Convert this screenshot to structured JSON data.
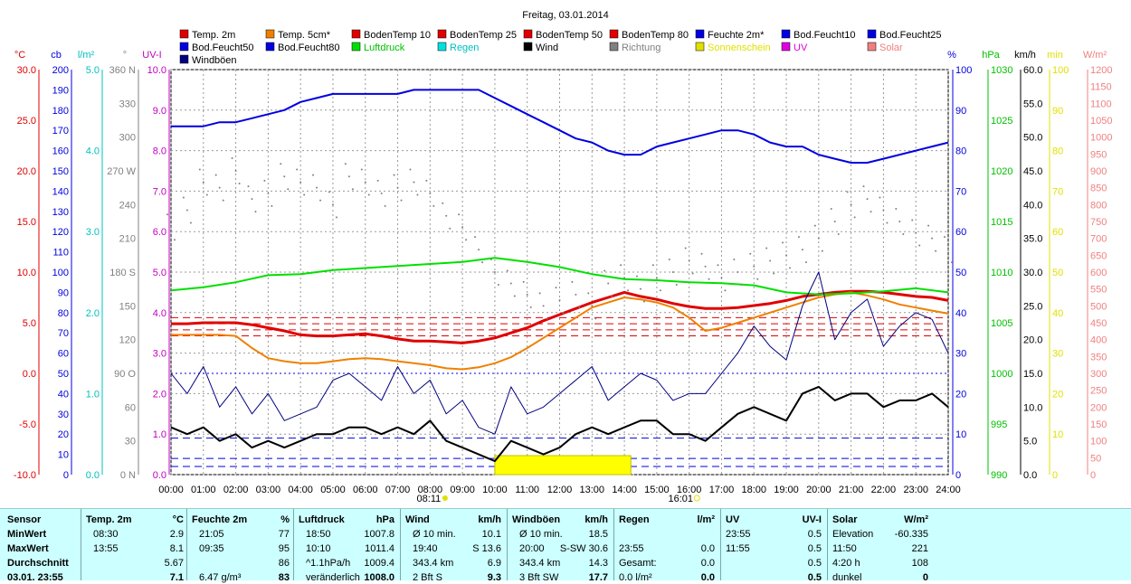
{
  "chart_data": {
    "type": "line",
    "title": "Freitag, 03.01.2014",
    "legend": [
      {
        "name": "Temp. 2m",
        "color": "#e00000"
      },
      {
        "name": "Temp. 5cm*",
        "color": "#f08000"
      },
      {
        "name": "BodenTemp 10",
        "color": "#e00000"
      },
      {
        "name": "BodenTemp 25",
        "color": "#e00000"
      },
      {
        "name": "BodenTemp 50",
        "color": "#e00000"
      },
      {
        "name": "BodenTemp 80",
        "color": "#e00000"
      },
      {
        "name": "Feuchte 2m*",
        "color": "#0000e0"
      },
      {
        "name": "Bod.Feucht10",
        "color": "#0000e0"
      },
      {
        "name": "Bod.Feucht25",
        "color": "#0000e0"
      },
      {
        "name": "Bod.Feucht50",
        "color": "#0000e0"
      },
      {
        "name": "Bod.Feucht80",
        "color": "#0000e0"
      },
      {
        "name": "Luftdruck",
        "color": "#00e000"
      },
      {
        "name": "Regen",
        "color": "#00e0e0"
      },
      {
        "name": "Wind",
        "color": "#000000"
      },
      {
        "name": "Richtung",
        "color": "#808080"
      },
      {
        "name": "Sonnenschein",
        "color": "#e0e000"
      },
      {
        "name": "UV",
        "color": "#e000e0"
      },
      {
        "name": "Solar",
        "color": "#f08080"
      },
      {
        "name": "Windböen",
        "color": "#000080"
      }
    ],
    "x_ticks": [
      "00:00",
      "01:00",
      "02:00",
      "03:00",
      "04:00",
      "05:00",
      "06:00",
      "07:00",
      "08:00",
      "09:00",
      "10:00",
      "11:00",
      "12:00",
      "13:00",
      "14:00",
      "15:00",
      "16:00",
      "17:00",
      "18:00",
      "19:00",
      "20:00",
      "21:00",
      "22:00",
      "23:00",
      "24:00"
    ],
    "sunrise": "08:11",
    "sunset": "16:01",
    "left_axes": [
      {
        "unit": "°C",
        "color": "#e00000",
        "ticks": [
          "30.0",
          "25.0",
          "20.0",
          "15.0",
          "10.0",
          "5.0",
          "0.0",
          "-5.0",
          "-10.0"
        ]
      },
      {
        "unit": "cb",
        "color": "#0000e0",
        "ticks": [
          "200",
          "190",
          "180",
          "170",
          "160",
          "150",
          "140",
          "130",
          "120",
          "110",
          "100",
          "90",
          "80",
          "70",
          "60",
          "50",
          "40",
          "30",
          "20",
          "10",
          "0"
        ]
      },
      {
        "unit": "l/m²",
        "color": "#00c0c0",
        "ticks": [
          "5.0",
          "4.0",
          "3.0",
          "2.0",
          "1.0",
          "0.0"
        ]
      },
      {
        "unit": "°",
        "color": "#808080",
        "ticks": [
          "360 N",
          "330",
          "300",
          "270 W",
          "240",
          "210",
          "180 S",
          "150",
          "120",
          "90 O",
          "60",
          "30",
          "0 N"
        ]
      },
      {
        "unit": "UV-I",
        "color": "#c000c0",
        "ticks": [
          "10.0",
          "9.0",
          "8.0",
          "7.0",
          "6.0",
          "5.0",
          "4.0",
          "3.0",
          "2.0",
          "1.0",
          "0.0"
        ]
      }
    ],
    "right_axes": [
      {
        "unit": "%",
        "color": "#0000e0",
        "ticks": [
          "100",
          "90",
          "80",
          "70",
          "60",
          "50",
          "40",
          "30",
          "20",
          "10",
          "0"
        ]
      },
      {
        "unit": "hPa",
        "color": "#00c000",
        "ticks": [
          "1030",
          "1025",
          "1020",
          "1015",
          "1010",
          "1005",
          "1000",
          "995",
          "990"
        ]
      },
      {
        "unit": "km/h",
        "color": "#000000",
        "ticks": [
          "60.0",
          "55.0",
          "50.0",
          "45.0",
          "40.0",
          "35.0",
          "30.0",
          "25.0",
          "20.0",
          "15.0",
          "10.0",
          "5.0",
          "0.0"
        ]
      },
      {
        "unit": "min",
        "color": "#e0e000",
        "ticks": [
          "100",
          "90",
          "80",
          "70",
          "60",
          "50",
          "40",
          "30",
          "20",
          "10",
          "0"
        ]
      },
      {
        "unit": "W/m²",
        "color": "#f08080",
        "ticks": [
          "1200",
          "1150",
          "1100",
          "1050",
          "1000",
          "950",
          "900",
          "850",
          "800",
          "750",
          "700",
          "650",
          "600",
          "550",
          "500",
          "450",
          "400",
          "350",
          "300",
          "250",
          "200",
          "150",
          "100",
          "50",
          "0"
        ]
      }
    ],
    "series": [
      {
        "name": "Feuchte 2m*",
        "axis": "%",
        "color": "#0000e0",
        "width": 2,
        "x": [
          0,
          0.5,
          1,
          1.5,
          2,
          2.5,
          3,
          3.5,
          4,
          4.5,
          5,
          5.5,
          6,
          6.5,
          7,
          7.5,
          8,
          8.5,
          9,
          9.5,
          10,
          10.5,
          11,
          11.5,
          12,
          12.5,
          13,
          13.5,
          14,
          14.5,
          15,
          15.5,
          16,
          16.5,
          17,
          17.5,
          18,
          18.5,
          19,
          19.5,
          20,
          20.5,
          21,
          21.5,
          22,
          22.5,
          23,
          23.5,
          24
        ],
        "y": [
          86,
          86,
          86,
          87,
          87,
          88,
          89,
          90,
          92,
          93,
          94,
          94,
          94,
          94,
          94,
          95,
          95,
          95,
          95,
          95,
          93,
          91,
          89,
          87,
          85,
          83,
          82,
          80,
          79,
          79,
          81,
          82,
          83,
          84,
          85,
          85,
          84,
          82,
          81,
          81,
          79,
          78,
          77,
          77,
          78,
          79,
          80,
          81,
          82
        ]
      },
      {
        "name": "Temp. 2m",
        "axis": "°C",
        "color": "#e00000",
        "width": 3,
        "x": [
          0,
          0.5,
          1,
          1.5,
          2,
          2.5,
          3,
          3.5,
          4,
          4.5,
          5,
          5.5,
          6,
          6.5,
          7,
          7.5,
          8,
          8.5,
          9,
          9.5,
          10,
          10.5,
          11,
          11.5,
          12,
          12.5,
          13,
          13.5,
          14,
          14.5,
          15,
          15.5,
          16,
          16.5,
          17,
          17.5,
          18,
          18.5,
          19,
          19.5,
          20,
          20.5,
          21,
          21.5,
          22,
          22.5,
          23,
          23.5,
          24
        ],
        "y": [
          4.9,
          4.9,
          5.0,
          5.0,
          5.0,
          4.8,
          4.5,
          4.2,
          3.8,
          3.7,
          3.7,
          3.8,
          3.9,
          3.7,
          3.4,
          3.2,
          3.2,
          3.1,
          3.0,
          3.2,
          3.5,
          4.0,
          4.5,
          5.2,
          5.8,
          6.4,
          7.0,
          7.5,
          8.0,
          7.6,
          7.3,
          6.9,
          6.6,
          6.4,
          6.4,
          6.5,
          6.7,
          6.9,
          7.2,
          7.6,
          7.8,
          8.0,
          8.1,
          8.1,
          8.0,
          7.8,
          7.6,
          7.5,
          7.2
        ]
      },
      {
        "name": "Temp. 5cm*",
        "axis": "°C",
        "color": "#f08000",
        "width": 2,
        "x": [
          0,
          0.5,
          1,
          1.5,
          2,
          2.5,
          3,
          3.5,
          4,
          4.5,
          5,
          5.5,
          6,
          6.5,
          7,
          7.5,
          8,
          8.5,
          9,
          9.5,
          10,
          10.5,
          11,
          11.5,
          12,
          12.5,
          13,
          13.5,
          14,
          14.5,
          15,
          15.5,
          16,
          16.5,
          17,
          17.5,
          18,
          18.5,
          19,
          19.5,
          20,
          20.5,
          21,
          21.5,
          22,
          22.5,
          23,
          23.5,
          24
        ],
        "y": [
          3.8,
          3.8,
          3.8,
          3.8,
          3.7,
          2.5,
          1.5,
          1.2,
          1.0,
          1.0,
          1.2,
          1.4,
          1.5,
          1.4,
          1.2,
          1.0,
          0.8,
          0.5,
          0.4,
          0.6,
          1.0,
          1.6,
          2.5,
          3.5,
          4.5,
          5.5,
          6.5,
          7.0,
          7.5,
          7.3,
          7.0,
          6.5,
          5.5,
          4.2,
          4.5,
          5.0,
          5.5,
          6.0,
          6.5,
          7.0,
          7.5,
          7.8,
          8.0,
          7.7,
          7.3,
          6.8,
          6.5,
          6.2,
          5.9
        ]
      },
      {
        "name": "Luftdruck",
        "axis": "hPa",
        "color": "#00e000",
        "width": 2,
        "x": [
          0,
          1,
          2,
          3,
          4,
          5,
          6,
          7,
          8,
          9,
          10,
          11,
          12,
          13,
          14,
          15,
          16,
          17,
          18,
          19,
          20,
          21,
          22,
          23,
          24
        ],
        "y": [
          1008.2,
          1008.5,
          1009.0,
          1009.7,
          1009.8,
          1010.2,
          1010.4,
          1010.6,
          1010.8,
          1011.0,
          1011.4,
          1011.0,
          1010.5,
          1009.8,
          1009.3,
          1009.2,
          1009.0,
          1008.9,
          1008.7,
          1008.0,
          1007.8,
          1007.9,
          1008.1,
          1008.4,
          1008.0
        ]
      },
      {
        "name": "Wind",
        "axis": "km/h",
        "color": "#000000",
        "width": 2,
        "x": [
          0,
          0.5,
          1,
          1.5,
          2,
          2.5,
          3,
          3.5,
          4,
          4.5,
          5,
          5.5,
          6,
          6.5,
          7,
          7.5,
          8,
          8.5,
          9,
          9.5,
          10,
          10.5,
          11,
          11.5,
          12,
          12.5,
          13,
          13.5,
          14,
          14.5,
          15,
          15.5,
          16,
          16.5,
          17,
          17.5,
          18,
          18.5,
          19,
          19.5,
          20,
          20.5,
          21,
          21.5,
          22,
          22.5,
          23,
          23.5,
          24
        ],
        "y": [
          7,
          6,
          7,
          5,
          6,
          4,
          5,
          4,
          5,
          6,
          6,
          7,
          7,
          6,
          7,
          6,
          8,
          5,
          4,
          3,
          2,
          5,
          4,
          3,
          4,
          6,
          7,
          6,
          7,
          8,
          8,
          6,
          6,
          5,
          7,
          9,
          10,
          9,
          8,
          12,
          13,
          11,
          12,
          12,
          10,
          11,
          11,
          12,
          10
        ]
      },
      {
        "name": "Windböen",
        "axis": "km/h",
        "color": "#000080",
        "width": 1,
        "x": [
          0,
          0.5,
          1,
          1.5,
          2,
          2.5,
          3,
          3.5,
          4,
          4.5,
          5,
          5.5,
          6,
          6.5,
          7,
          7.5,
          8,
          8.5,
          9,
          9.5,
          10,
          10.5,
          11,
          11.5,
          12,
          12.5,
          13,
          13.5,
          14,
          14.5,
          15,
          15.5,
          16,
          16.5,
          17,
          17.5,
          18,
          18.5,
          19,
          19.5,
          20,
          20.5,
          21,
          21.5,
          22,
          22.5,
          23,
          23.5,
          24
        ],
        "y": [
          15,
          12,
          16,
          10,
          13,
          9,
          12,
          8,
          9,
          10,
          14,
          15,
          13,
          11,
          16,
          12,
          14,
          9,
          11,
          7,
          6,
          13,
          9,
          10,
          12,
          14,
          16,
          11,
          13,
          15,
          14,
          11,
          12,
          12,
          15,
          18,
          22,
          19,
          17,
          25,
          30,
          20,
          24,
          26,
          19,
          22,
          24,
          23,
          18
        ]
      },
      {
        "name": "Richtung",
        "axis": "°",
        "color": "#808080",
        "width": 1,
        "style": "dots",
        "x": [
          0,
          0.5,
          1,
          1.5,
          2,
          2.5,
          3,
          3.5,
          4,
          4.5,
          5,
          5.5,
          6,
          6.5,
          7,
          7.5,
          8,
          8.5,
          9,
          9.5,
          10,
          10.5,
          11,
          11.5,
          12,
          12.5,
          13,
          13.5,
          14,
          14.5,
          15,
          15.5,
          16,
          16.5,
          17,
          17.5,
          18,
          18.5,
          19,
          19.5,
          20,
          20.5,
          21,
          21.5,
          22,
          22.5,
          23,
          23.5,
          24
        ],
        "y": [
          220,
          235,
          260,
          255,
          270,
          245,
          250,
          265,
          260,
          255,
          240,
          265,
          260,
          250,
          255,
          260,
          250,
          230,
          220,
          200,
          180,
          170,
          160,
          150,
          155,
          160,
          150,
          170,
          175,
          165,
          175,
          180,
          190,
          185,
          175,
          180,
          185,
          190,
          195,
          200,
          210,
          225,
          240,
          245,
          235,
          225,
          215,
          210,
          200
        ]
      }
    ],
    "sunshine_blocks": [
      {
        "from": 10.0,
        "to": 14.2
      }
    ],
    "ref_lines": [
      {
        "axis": "°C",
        "value": 5.5,
        "color": "#e00000",
        "style": "dashed"
      },
      {
        "axis": "°C",
        "value": 4.9,
        "color": "#e00000",
        "style": "dashed"
      },
      {
        "axis": "°C",
        "value": 4.3,
        "color": "#e00000",
        "style": "dashed"
      },
      {
        "axis": "°C",
        "value": 3.7,
        "color": "#e00000",
        "style": "dashed"
      },
      {
        "axis": "cb",
        "value": 50,
        "color": "#0000e0",
        "style": "dotted"
      },
      {
        "axis": "cb",
        "value": 18,
        "color": "#0000e0",
        "style": "dashed"
      },
      {
        "axis": "cb",
        "value": 8,
        "color": "#0000e0",
        "style": "dashed"
      },
      {
        "axis": "cb",
        "value": 4,
        "color": "#0000e0",
        "style": "dashed"
      }
    ]
  },
  "stats": {
    "columns": [
      {
        "header": "Sensor",
        "rows": [
          "MinWert",
          "MaxWert",
          "Durchschnitt",
          "03.01. 23:55"
        ]
      },
      {
        "header": "Temp. 2m",
        "unit": "°C",
        "rows": [
          [
            "08:30",
            "2.9"
          ],
          [
            "13:55",
            "8.1"
          ],
          [
            "",
            "5.67"
          ],
          [
            "",
            "7.1"
          ]
        ]
      },
      {
        "header": "Feuchte 2m",
        "unit": "%",
        "rows": [
          [
            "21:05",
            "77"
          ],
          [
            "09:35",
            "95"
          ],
          [
            "",
            "86"
          ],
          [
            "6.47 g/m³",
            "83"
          ]
        ]
      },
      {
        "header": "Luftdruck",
        "unit": "hPa",
        "rows": [
          [
            "18:50",
            "1007.8"
          ],
          [
            "10:10",
            "1011.4"
          ],
          [
            "^1.1hPa/h",
            "1009.4"
          ],
          [
            "veränderlich",
            "1008.0"
          ]
        ]
      },
      {
        "header": "Wind",
        "unit": "km/h",
        "rows": [
          [
            "Ø 10 min.",
            "10.1"
          ],
          [
            "19:40",
            "S 13.6"
          ],
          [
            "343.4 km",
            "6.9"
          ],
          [
            "2 Bft S",
            "9.3"
          ]
        ]
      },
      {
        "header": "Windböen",
        "unit": "km/h",
        "rows": [
          [
            "Ø 10 min.",
            "18.5"
          ],
          [
            "20:00",
            "S-SW 30.6"
          ],
          [
            "343.4 km",
            "14.3"
          ],
          [
            "3 Bft SW",
            "17.7"
          ]
        ]
      },
      {
        "header": "Regen",
        "unit": "l/m²",
        "rows": [
          [
            "",
            ""
          ],
          [
            "23:55",
            "0.0"
          ],
          [
            "Gesamt:",
            "0.0"
          ],
          [
            "0.0 l/m²",
            "0.0"
          ]
        ]
      },
      {
        "header": "UV",
        "unit": "UV-I",
        "rows": [
          [
            "23:55",
            "0.5"
          ],
          [
            "11:55",
            "0.5"
          ],
          [
            "",
            "0.5"
          ],
          [
            "",
            "0.5"
          ]
        ]
      },
      {
        "header": "Solar",
        "unit": "W/m²",
        "rows": [
          [
            "Elevation",
            "-60.335"
          ],
          [
            "11:50",
            "221"
          ],
          [
            "4:20 h",
            "108"
          ],
          [
            "dunkel",
            "0"
          ]
        ]
      }
    ]
  }
}
